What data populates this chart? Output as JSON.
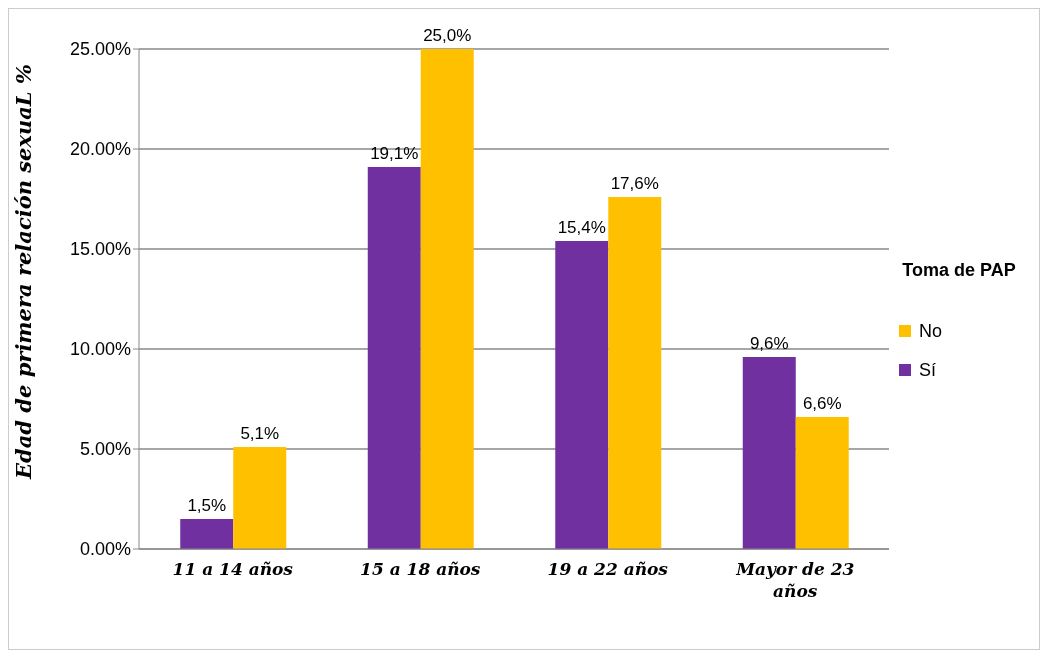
{
  "chart_data": {
    "type": "bar",
    "ylabel": "Edad de primera relación sexuaL %",
    "legend_title": "Toma de PAP",
    "categories": [
      "11 a 14 años",
      "15 a 18 años",
      "19 a 22 años",
      "Mayor de  23 años"
    ],
    "series": [
      {
        "name": "Sí",
        "color": "#7030a0",
        "values": [
          1.5,
          19.1,
          15.4,
          9.6
        ],
        "value_labels": [
          "1,5%",
          "19,1%",
          "15,4%",
          "9,6%"
        ]
      },
      {
        "name": "No",
        "color": "#ffc000",
        "values": [
          5.1,
          25.0,
          17.6,
          6.6
        ],
        "value_labels": [
          "5,1%",
          "25,0%",
          "17,6%",
          "6,6%"
        ]
      }
    ],
    "ylim": [
      0,
      25
    ],
    "yticks": [
      {
        "value": 0,
        "label": "0.00%"
      },
      {
        "value": 5,
        "label": "5.00%"
      },
      {
        "value": 10,
        "label": "10.00%"
      },
      {
        "value": 15,
        "label": "15.00%"
      },
      {
        "value": 20,
        "label": "20.00%"
      },
      {
        "value": 25,
        "label": "25.00%"
      }
    ],
    "grid": "y",
    "legend": "right"
  }
}
